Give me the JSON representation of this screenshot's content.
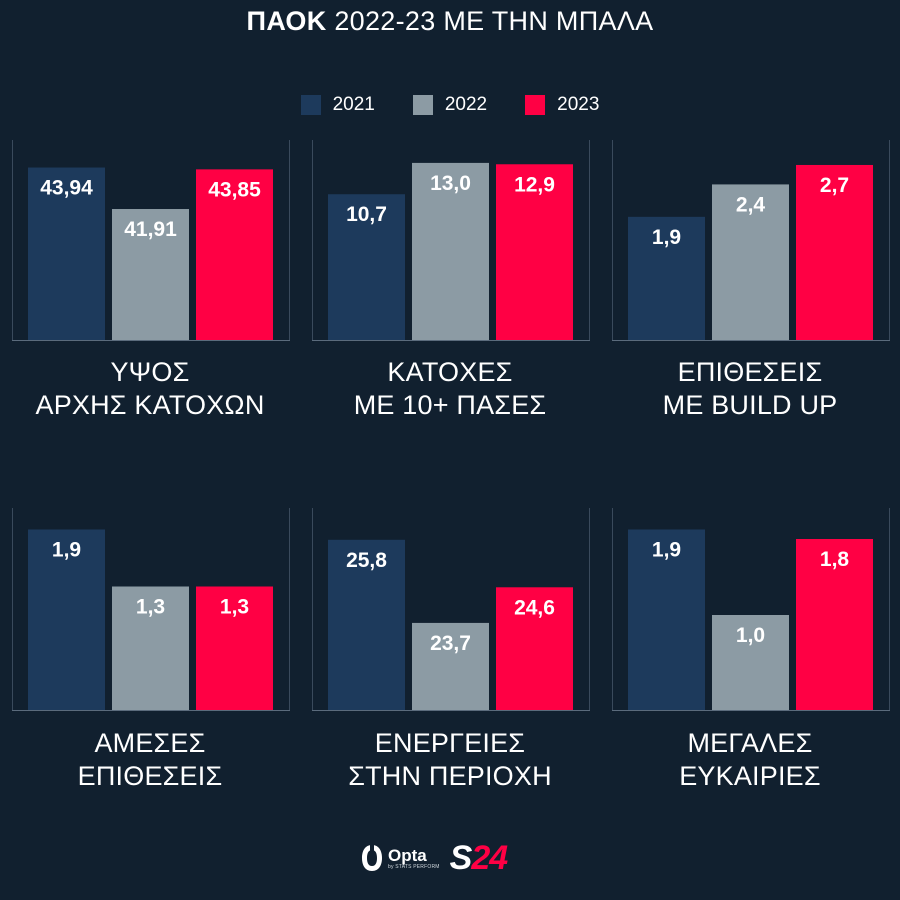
{
  "header": {
    "title_strong": "ΠΑΟΚ",
    "title_rest": "2022-23 ΜΕ ΤΗΝ ΜΠΑΛΑ"
  },
  "legend": [
    {
      "label": "2021",
      "color": "#1d3a5c"
    },
    {
      "label": "2022",
      "color": "#8c9ba4"
    },
    {
      "label": "2023",
      "color": "#ff0044"
    }
  ],
  "chart_data": [
    {
      "type": "bar",
      "categories": [
        "2021",
        "2022",
        "2023"
      ],
      "values": [
        43.94,
        41.91,
        43.85
      ],
      "labels": [
        "43,94",
        "41,91",
        "43,85"
      ],
      "caption": [
        "ΥΨΟΣ",
        "ΑΡΧΗΣ ΚΑΤΟΧΩΝ"
      ],
      "ylim": [
        35.5,
        44.7
      ]
    },
    {
      "type": "bar",
      "categories": [
        "2021",
        "2022",
        "2023"
      ],
      "values": [
        10.7,
        13.0,
        12.9
      ],
      "labels": [
        "10,7",
        "13,0",
        "12,9"
      ],
      "caption": [
        "ΚΑΤΟΧΕΣ",
        "ΜΕ 10+ ΠΑΣΕΣ"
      ],
      "ylim": [
        0,
        13.8
      ]
    },
    {
      "type": "bar",
      "categories": [
        "2021",
        "2022",
        "2023"
      ],
      "values": [
        1.9,
        2.4,
        2.7
      ],
      "labels": [
        "1,9",
        "2,4",
        "2,7"
      ],
      "caption": [
        "ΕΠΙΘΕΣΕΙΣ",
        "ΜΕ BUILD UP"
      ],
      "ylim": [
        0,
        2.9
      ]
    },
    {
      "type": "bar",
      "categories": [
        "2021",
        "2022",
        "2023"
      ],
      "values": [
        1.9,
        1.3,
        1.3
      ],
      "labels": [
        "1,9",
        "1,3",
        "1,3"
      ],
      "caption": [
        "ΑΜΕΣΕΣ",
        "ΕΠΙΘΕΣΕΙΣ"
      ],
      "ylim": [
        0,
        2.0
      ]
    },
    {
      "type": "bar",
      "categories": [
        "2021",
        "2022",
        "2023"
      ],
      "values": [
        25.8,
        23.7,
        24.6
      ],
      "labels": [
        "25,8",
        "23,7",
        "24,6"
      ],
      "caption": [
        "ΕΝΕΡΓΕΙΕΣ",
        "ΣΤΗΝ ΠΕΡΙΟΧΗ"
      ],
      "ylim": [
        21.5,
        26.3
      ]
    },
    {
      "type": "bar",
      "categories": [
        "2021",
        "2022",
        "2023"
      ],
      "values": [
        1.9,
        1.0,
        1.8
      ],
      "labels": [
        "1,9",
        "1,0",
        "1,8"
      ],
      "caption": [
        "ΜΕΓΑΛΕΣ",
        "ΕΥΚΑΙΡΙΕΣ"
      ],
      "ylim": [
        0,
        2.0
      ]
    }
  ],
  "footer": {
    "opta_name": "Opta",
    "opta_sub": "by STATS PERFORM",
    "brand_s": "S",
    "brand_num": "24"
  }
}
